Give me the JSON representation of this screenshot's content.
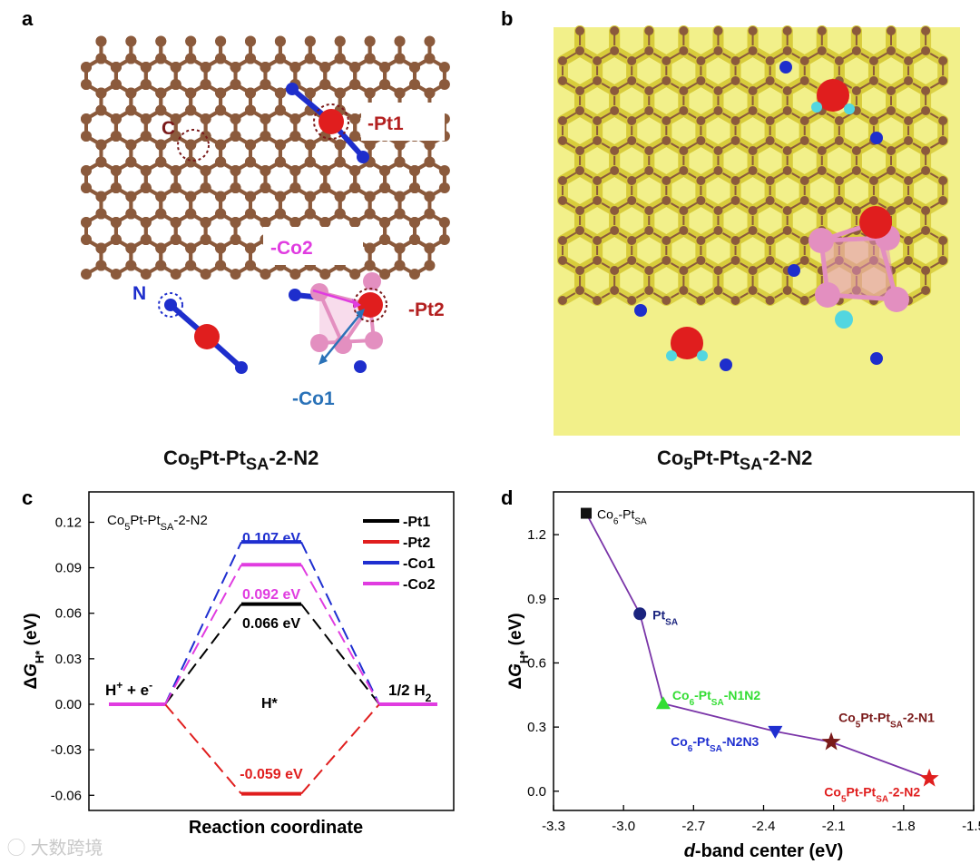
{
  "panels": {
    "a": {
      "letter": "a",
      "caption_parts": [
        "Co",
        "5",
        "Pt-Pt",
        "SA",
        "-2-N2"
      ],
      "labels": {
        "c": "C",
        "n": "N",
        "pt1": "-Pt1",
        "pt2": "-Pt2",
        "co1": "-Co1",
        "co2": "-Co2"
      }
    },
    "b": {
      "letter": "b",
      "caption_parts": [
        "Co",
        "5",
        "Pt-Pt",
        "SA",
        "-2-N2"
      ]
    },
    "c": {
      "letter": "c"
    },
    "d": {
      "letter": "d"
    }
  },
  "colors": {
    "carbon": "#8b5a3c",
    "nitrogen": "#1e2ecc",
    "pt": "#e01e1e",
    "co": "#e38fc0",
    "isosurface": "#ecec5a",
    "cyan": "#52d6e0",
    "pt1": "#000000",
    "pt2": "#e01e1e",
    "co1": "#1f2fd0",
    "co2": "#e03ce0",
    "d_line": "#7a35a8"
  },
  "chart_data": [
    {
      "id": "c",
      "type": "line",
      "title_parts": [
        "Co",
        "5",
        "Pt-Pt",
        "SA",
        "-2-N2"
      ],
      "xlabel": "Reaction coordinate",
      "ylabel_parts": [
        "ΔG",
        "H*",
        " (eV)"
      ],
      "ylim": [
        -0.07,
        0.14
      ],
      "yticks": [
        -0.06,
        -0.03,
        0.0,
        0.03,
        0.06,
        0.09,
        0.12
      ],
      "ytick_labels": [
        "-0.06",
        "-0.03",
        "0.00",
        "0.03",
        "0.06",
        "0.09",
        "0.12"
      ],
      "states": [
        {
          "label_parts": [
            "H",
            "+",
            " + e",
            "-"
          ]
        },
        {
          "label": "H*"
        },
        {
          "label_parts": [
            "1/2 H",
            "2"
          ]
        }
      ],
      "series": [
        {
          "name": "-Pt1",
          "values": [
            0,
            0.066,
            0
          ],
          "label": "0.066 eV",
          "color": "#000000"
        },
        {
          "name": "-Pt2",
          "values": [
            0,
            -0.059,
            0
          ],
          "label": "-0.059 eV",
          "color": "#e01e1e"
        },
        {
          "name": "-Co1",
          "values": [
            0,
            0.107,
            0
          ],
          "label": "0.107 eV",
          "color": "#1f2fd0"
        },
        {
          "name": "-Co2",
          "values": [
            0,
            0.092,
            0
          ],
          "label": "0.092 eV",
          "color": "#e03ce0"
        }
      ]
    },
    {
      "id": "d",
      "type": "scatter",
      "xlabel_parts": [
        "d",
        "-band center (eV)"
      ],
      "ylabel_parts": [
        "ΔG",
        "H*",
        " (eV)"
      ],
      "xlim": [
        -3.3,
        -1.5
      ],
      "ylim": [
        -0.09,
        1.4
      ],
      "xticks": [
        -3.3,
        -3.0,
        -2.7,
        -2.4,
        -2.1,
        -1.8,
        -1.5
      ],
      "xtick_labels": [
        "-3.3",
        "-3.0",
        "-2.7",
        "-2.4",
        "-2.1",
        "-1.8",
        "-1.5"
      ],
      "yticks": [
        0.0,
        0.3,
        0.6,
        0.9,
        1.2
      ],
      "ytick_labels": [
        "0.0",
        "0.3",
        "0.6",
        "0.9",
        "1.2"
      ],
      "points": [
        {
          "x": -3.16,
          "y": 1.3,
          "marker": "square",
          "color": "#111111",
          "label_parts": [
            "Co",
            "6",
            "-Pt",
            "SA"
          ]
        },
        {
          "x": -2.93,
          "y": 0.83,
          "marker": "circle",
          "color": "#1a237e",
          "label_parts": [
            "Pt",
            "SA"
          ]
        },
        {
          "x": -2.83,
          "y": 0.41,
          "marker": "triangle-up",
          "color": "#33dd33",
          "label_parts": [
            "Co",
            "6",
            "-Pt",
            "SA",
            "-N1N2"
          ]
        },
        {
          "x": -2.35,
          "y": 0.28,
          "marker": "triangle-down",
          "color": "#1f2fd0",
          "label_parts": [
            "Co",
            "6",
            "-Pt",
            "SA",
            "-N2N3"
          ]
        },
        {
          "x": -2.11,
          "y": 0.23,
          "marker": "star",
          "color": "#7a1a1a",
          "label_parts": [
            "Co",
            "5",
            "Pt-Pt",
            "SA",
            "-2-N1"
          ]
        },
        {
          "x": -1.69,
          "y": 0.06,
          "marker": "star",
          "color": "#e01e1e",
          "label_parts": [
            "Co",
            "5",
            "Pt-Pt",
            "SA",
            "-2-N2"
          ]
        }
      ]
    }
  ],
  "watermark": "大数跨境"
}
